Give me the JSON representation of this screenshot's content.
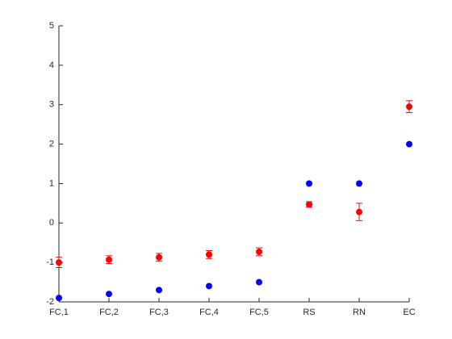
{
  "chart_data": {
    "type": "scatter",
    "categories": [
      "FC,1",
      "FC,2",
      "FC,3",
      "FC,4",
      "FC,5",
      "RS",
      "RN",
      "EC"
    ],
    "series": [
      {
        "color": "#0000ff",
        "values": [
          -1.9,
          -1.8,
          -1.7,
          -1.6,
          -1.5,
          1,
          1,
          2
        ]
      },
      {
        "color": "#ff0000",
        "values": [
          -1.0,
          -0.93,
          -0.87,
          -0.8,
          -0.73,
          0.47,
          0.28,
          2.95
        ],
        "errors": [
          0.13,
          0.1,
          0.1,
          0.1,
          0.1,
          0.07,
          0.22,
          0.15
        ]
      }
    ],
    "ylim": [
      -2,
      5
    ],
    "yticks": [
      -2,
      -1,
      0,
      1,
      2,
      3,
      4,
      5
    ],
    "grid": false
  }
}
